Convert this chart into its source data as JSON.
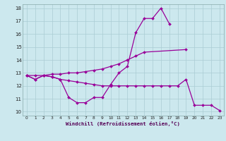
{
  "xlabel": "Windchill (Refroidissement éolien,°C)",
  "hours": [
    0,
    1,
    2,
    3,
    4,
    5,
    6,
    7,
    8,
    9,
    10,
    11,
    12,
    13,
    14,
    15,
    16,
    17,
    18,
    19,
    20,
    21,
    22,
    23
  ],
  "line1_x": [
    0,
    1,
    2,
    3,
    4,
    5,
    6,
    7,
    8,
    9,
    10,
    11,
    12,
    13,
    14,
    15,
    16,
    17
  ],
  "line1_y": [
    12.8,
    12.5,
    12.8,
    12.7,
    12.5,
    11.1,
    10.7,
    10.7,
    11.1,
    11.1,
    12.1,
    13.0,
    13.5,
    16.1,
    17.2,
    17.2,
    18.0,
    16.8
  ],
  "line2_x": [
    0,
    1,
    2,
    3,
    4,
    5,
    6,
    7,
    8,
    9,
    10,
    11,
    12,
    13,
    14,
    15,
    16,
    17,
    18,
    19,
    20,
    21,
    22,
    23
  ],
  "line2_y": [
    12.8,
    12.5,
    12.8,
    12.7,
    12.5,
    12.4,
    12.3,
    12.2,
    12.1,
    12.0,
    12.0,
    12.0,
    12.0,
    12.0,
    12.0,
    12.0,
    12.0,
    12.0,
    12.0,
    12.5,
    10.5,
    10.5,
    10.5,
    10.1
  ],
  "line3_x": [
    0,
    1,
    2,
    3,
    4,
    5,
    6,
    7,
    8,
    9,
    10,
    11,
    12,
    13,
    14,
    19
  ],
  "line3_y": [
    12.8,
    12.8,
    12.8,
    12.9,
    12.9,
    13.0,
    13.0,
    13.1,
    13.2,
    13.3,
    13.5,
    13.7,
    14.0,
    14.3,
    14.6,
    14.8
  ],
  "bg_color": "#cce8ee",
  "grid_color": "#aaccd4",
  "line_color": "#990099",
  "ylim_min": 9.7,
  "ylim_max": 18.3,
  "xlim_min": -0.5,
  "xlim_max": 23.5,
  "yticks": [
    10,
    11,
    12,
    13,
    14,
    15,
    16,
    17,
    18
  ],
  "xticks": [
    0,
    1,
    2,
    3,
    4,
    5,
    6,
    7,
    8,
    9,
    10,
    11,
    12,
    13,
    14,
    15,
    16,
    17,
    18,
    19,
    20,
    21,
    22,
    23
  ]
}
